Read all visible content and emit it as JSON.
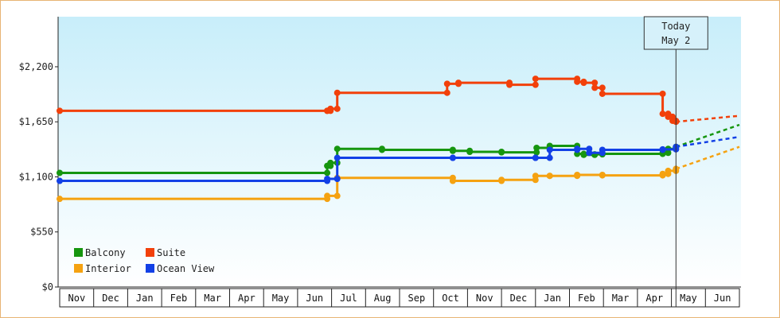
{
  "chart_data": {
    "type": "line",
    "ylim": [
      0,
      2700
    ],
    "y_ticks": [
      0,
      550,
      1100,
      1650,
      2200
    ],
    "y_tick_labels": [
      "$0",
      "$550",
      "$1,100",
      "$1,650",
      "$2,200"
    ],
    "x_range": [
      "2018-10-28",
      "2019-07-07"
    ],
    "months": [
      {
        "label": "Nov",
        "start": "2018-10-28",
        "end": "2018-11-28"
      },
      {
        "label": "Dec",
        "start": "2018-11-28",
        "end": "2018-12-28"
      },
      {
        "label": "Jan",
        "start": "2018-12-28",
        "end": "2019-01-28"
      },
      {
        "label": "Feb",
        "start": "2019-01-28",
        "end": "2019-02-28"
      },
      {
        "label": "Mar",
        "start": "2019-02-28",
        "end": "2019-03-28"
      },
      {
        "label": "Apr",
        "start": "2019-03-28",
        "end": "2019-04-28"
      },
      {
        "label": "May",
        "start": "2019-04-28",
        "end": "2019-05-28"
      },
      {
        "label": "Jun",
        "start": "2019-05-28",
        "end": "2019-06-28"
      },
      {
        "label": "Jul",
        "start": "2019-06-28",
        "end": "2019-07-28"
      },
      {
        "label": "Aug",
        "start": "2019-07-28",
        "end": "2019-08-28"
      },
      {
        "label": "Sep",
        "start": "2019-08-28",
        "end": "2019-09-28"
      },
      {
        "label": "Oct",
        "start": "2019-09-28",
        "end": "2019-10-28"
      },
      {
        "label": "Nov",
        "start": "2019-10-28",
        "end": "2019-11-28"
      },
      {
        "label": "Dec",
        "start": "2019-11-28",
        "end": "2019-12-28"
      },
      {
        "label": "Jan",
        "start": "2019-12-28",
        "end": "2020-01-28"
      },
      {
        "label": "Feb",
        "start": "2020-01-28",
        "end": "2020-02-28"
      },
      {
        "label": "Mar",
        "start": "2020-02-28",
        "end": "2020-03-28"
      },
      {
        "label": "Apr",
        "start": "2020-03-28",
        "end": "2020-04-28"
      },
      {
        "label": "May",
        "start": "2020-04-28",
        "end": "2020-05-28"
      },
      {
        "label": "Jun",
        "start": "2020-05-28",
        "end": "2020-06-28"
      }
    ],
    "today": {
      "date": "2020-05-02",
      "line1": "Today",
      "line2": "May 2"
    },
    "series": [
      {
        "name": "Balcony",
        "color": "#16960f",
        "points": [
          {
            "date": "2018-10-28",
            "value": 1140
          },
          {
            "date": "2019-06-24",
            "value": 1210
          },
          {
            "date": "2019-06-27",
            "value": 1240
          },
          {
            "date": "2019-07-03",
            "value": 1380
          },
          {
            "date": "2019-08-12",
            "value": 1370
          },
          {
            "date": "2019-10-15",
            "value": 1360
          },
          {
            "date": "2019-10-30",
            "value": 1350
          },
          {
            "date": "2019-11-28",
            "value": 1345
          },
          {
            "date": "2019-12-29",
            "value": 1390
          },
          {
            "date": "2020-01-10",
            "value": 1410
          },
          {
            "date": "2020-02-04",
            "value": 1330
          },
          {
            "date": "2020-02-10",
            "value": 1320
          },
          {
            "date": "2020-02-20",
            "value": 1325
          },
          {
            "date": "2020-02-27",
            "value": 1330
          },
          {
            "date": "2020-04-20",
            "value": 1340
          },
          {
            "date": "2020-04-25",
            "value": 1380
          },
          {
            "date": "2020-05-02",
            "value": 1400
          }
        ],
        "projection": [
          {
            "date": "2020-05-02",
            "value": 1400
          },
          {
            "date": "2020-07-06",
            "value": 1620
          }
        ]
      },
      {
        "name": "Suite",
        "color": "#f2400a",
        "points": [
          {
            "date": "2018-10-28",
            "value": 1760
          },
          {
            "date": "2019-06-24",
            "value": 1760
          },
          {
            "date": "2019-06-27",
            "value": 1780
          },
          {
            "date": "2019-07-03",
            "value": 1940
          },
          {
            "date": "2019-10-10",
            "value": 2030
          },
          {
            "date": "2019-10-20",
            "value": 2040
          },
          {
            "date": "2019-12-05",
            "value": 2020
          },
          {
            "date": "2019-12-28",
            "value": 2080
          },
          {
            "date": "2020-02-04",
            "value": 2050
          },
          {
            "date": "2020-02-10",
            "value": 2040
          },
          {
            "date": "2020-02-20",
            "value": 1990
          },
          {
            "date": "2020-02-27",
            "value": 1930
          },
          {
            "date": "2020-04-20",
            "value": 1730
          },
          {
            "date": "2020-04-25",
            "value": 1700
          },
          {
            "date": "2020-04-29",
            "value": 1660
          },
          {
            "date": "2020-05-02",
            "value": 1650
          }
        ],
        "projection": [
          {
            "date": "2020-05-02",
            "value": 1650
          },
          {
            "date": "2020-07-06",
            "value": 1710
          }
        ]
      },
      {
        "name": "Interior",
        "color": "#f5a211",
        "points": [
          {
            "date": "2018-10-28",
            "value": 880
          },
          {
            "date": "2019-06-24",
            "value": 910
          },
          {
            "date": "2019-07-03",
            "value": 1090
          },
          {
            "date": "2019-10-15",
            "value": 1060
          },
          {
            "date": "2019-11-28",
            "value": 1070
          },
          {
            "date": "2019-12-28",
            "value": 1110
          },
          {
            "date": "2020-01-10",
            "value": 1110
          },
          {
            "date": "2020-02-04",
            "value": 1120
          },
          {
            "date": "2020-02-27",
            "value": 1115
          },
          {
            "date": "2020-04-20",
            "value": 1130
          },
          {
            "date": "2020-04-25",
            "value": 1160
          },
          {
            "date": "2020-05-02",
            "value": 1180
          }
        ],
        "projection": [
          {
            "date": "2020-05-02",
            "value": 1180
          },
          {
            "date": "2020-07-06",
            "value": 1400
          }
        ]
      },
      {
        "name": "Ocean View",
        "color": "#1240e6",
        "points": [
          {
            "date": "2018-10-28",
            "value": 1060
          },
          {
            "date": "2019-06-24",
            "value": 1080
          },
          {
            "date": "2019-07-03",
            "value": 1290
          },
          {
            "date": "2019-10-15",
            "value": 1290
          },
          {
            "date": "2019-12-28",
            "value": 1290
          },
          {
            "date": "2020-01-10",
            "value": 1370
          },
          {
            "date": "2020-02-04",
            "value": 1380
          },
          {
            "date": "2020-02-15",
            "value": 1340
          },
          {
            "date": "2020-02-27",
            "value": 1370
          },
          {
            "date": "2020-04-20",
            "value": 1375
          },
          {
            "date": "2020-05-02",
            "value": 1400
          }
        ],
        "projection": [
          {
            "date": "2020-05-02",
            "value": 1400
          },
          {
            "date": "2020-07-06",
            "value": 1500
          }
        ]
      }
    ],
    "legend": {
      "placement": "bottom-left",
      "items": [
        {
          "label": "Balcony",
          "color": "#16960f"
        },
        {
          "label": "Suite",
          "color": "#f2400a"
        },
        {
          "label": "Interior",
          "color": "#f5a211"
        },
        {
          "label": "Ocean View",
          "color": "#1240e6"
        }
      ]
    }
  }
}
